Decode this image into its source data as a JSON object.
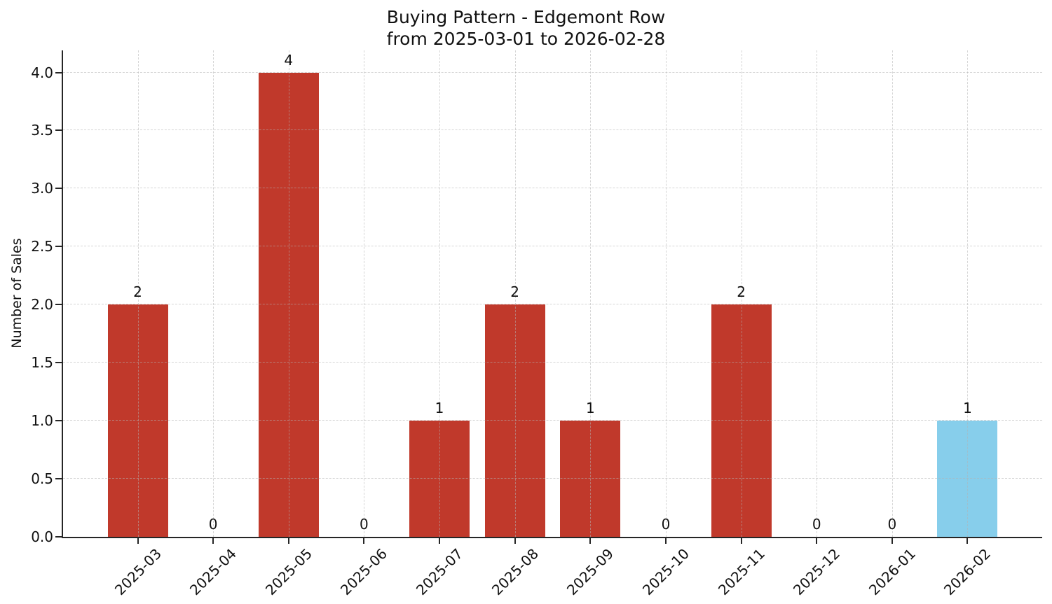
{
  "figure": {
    "background": "#ffffff"
  },
  "chart_data": {
    "type": "bar",
    "title": "Buying Pattern - Edgemont Row from 2025-03-01 to 2026-02-28",
    "title_lines": [
      "Buying Pattern - Edgemont Row",
      "from 2025-03-01 to 2026-02-28"
    ],
    "xlabel": "",
    "ylabel": "Number of Sales",
    "categories": [
      "2025-03",
      "2025-04",
      "2025-05",
      "2025-06",
      "2025-07",
      "2025-08",
      "2025-09",
      "2025-10",
      "2025-11",
      "2025-12",
      "2026-01",
      "2026-02"
    ],
    "values": [
      2,
      0,
      4,
      0,
      1,
      2,
      1,
      0,
      2,
      0,
      0,
      1
    ],
    "value_labels": [
      "2",
      "0",
      "4",
      "0",
      "1",
      "2",
      "1",
      "0",
      "2",
      "0",
      "0",
      "1"
    ],
    "bar_colors": [
      "#c0392b",
      "#c0392b",
      "#c0392b",
      "#c0392b",
      "#c0392b",
      "#c0392b",
      "#c0392b",
      "#c0392b",
      "#c0392b",
      "#c0392b",
      "#c0392b",
      "#87ceeb"
    ],
    "colors": {
      "bar_default": "#c0392b",
      "bar_highlight": "#87ceeb",
      "spine": "#262626",
      "grid": "#b2b2b2"
    },
    "ylim": [
      0,
      4.19
    ],
    "yticks": [
      0,
      0.5,
      1,
      1.5,
      2,
      2.5,
      3,
      3.5,
      4
    ],
    "ytick_labels": [
      "0.0",
      "0.5",
      "1.0",
      "1.5",
      "2.0",
      "2.5",
      "3.0",
      "3.5",
      "4.0"
    ],
    "x_tick_rotation_deg": 45,
    "grid": "dashed, horizontal and vertical, drawn over bars",
    "legend": "none"
  }
}
